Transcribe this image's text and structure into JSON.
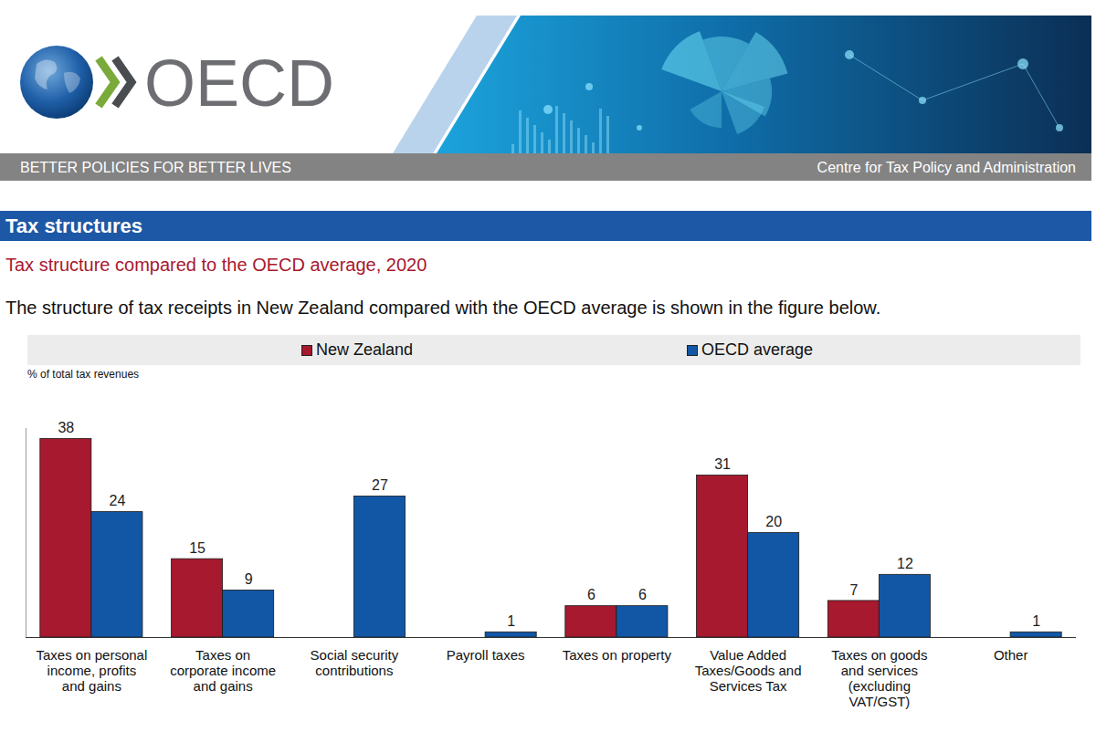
{
  "header": {
    "logo": "OECD",
    "tagline": "BETTER POLICIES FOR BETTER LIVES",
    "centre": "Centre for Tax Policy and Administration",
    "section": "Tax structures"
  },
  "chart_data": {
    "type": "bar",
    "title": "Tax structure compared to the OECD average, 2020",
    "subtitle": "The structure of tax receipts in New Zealand compared with the OECD average is shown in the figure below.",
    "ylabel": "% of total tax revenues",
    "categories": [
      "Taxes on personal income, profits and gains",
      "Taxes on corporate income and gains",
      "Social security contributions",
      "Payroll taxes",
      "Taxes on property",
      "Value Added Taxes/Goods and Services Tax",
      "Taxes on goods and services (excluding VAT/GST)",
      "Other"
    ],
    "series": [
      {
        "name": "New Zealand",
        "color": "#a6192e",
        "values": [
          38,
          15,
          null,
          null,
          6,
          31,
          7,
          null
        ]
      },
      {
        "name": "OECD average",
        "color": "#1257a6",
        "values": [
          24,
          9,
          27,
          1,
          6,
          20,
          12,
          1
        ]
      }
    ],
    "ylim": [
      0,
      40
    ],
    "legend": "top",
    "data_labels": true,
    "tick_labels": "x",
    "grid": false
  }
}
